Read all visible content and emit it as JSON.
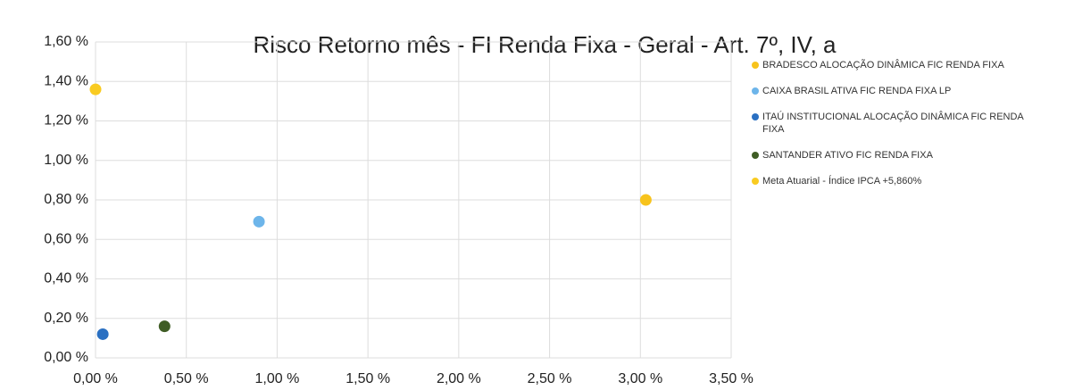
{
  "chart_data": {
    "type": "scatter",
    "title": "Risco Retorno mês - FI Renda Fixa - Geral - Art. 7º, IV, a",
    "series": [
      {
        "name": "BRADESCO ALOCAÇÃO DINÂMICA FIC RENDA FIXA",
        "color": "#f7c31c",
        "x": [
          3.03
        ],
        "values": [
          0.8
        ]
      },
      {
        "name": "CAIXA BRASIL ATIVA FIC RENDA FIXA LP",
        "color": "#6db5ea",
        "x": [
          0.9
        ],
        "values": [
          0.69
        ]
      },
      {
        "name": "ITAÚ INSTITUCIONAL ALOCAÇÃO DINÂMICA FIC RENDA FIXA",
        "color": "#2a70c2",
        "x": [
          0.04
        ],
        "values": [
          0.12
        ]
      },
      {
        "name": "SANTANDER ATIVO FIC RENDA FIXA",
        "color": "#3f5d25",
        "x": [
          0.38
        ],
        "values": [
          0.16
        ]
      },
      {
        "name": "Meta Atuarial - Índice IPCA +5,860%",
        "color": "#f9cb21",
        "x": [
          0
        ],
        "values": [
          1.36
        ]
      }
    ],
    "xlim": [
      0,
      3.5
    ],
    "xticks": [
      {
        "value": 0,
        "label": "0,00 %"
      },
      {
        "value": 0.5,
        "label": "0,50 %"
      },
      {
        "value": 1,
        "label": "1,00 %"
      },
      {
        "value": 1.5,
        "label": "1,50 %"
      },
      {
        "value": 2,
        "label": "2,00 %"
      },
      {
        "value": 2.5,
        "label": "2,50 %"
      },
      {
        "value": 3,
        "label": "3,00 %"
      },
      {
        "value": 3.5,
        "label": "3,50 %"
      }
    ],
    "ylim": [
      0,
      1.6
    ],
    "yticks": [
      {
        "value": 0,
        "label": "0,00 %"
      },
      {
        "value": 0.2,
        "label": "0,20 %"
      },
      {
        "value": 0.4,
        "label": "0,40 %"
      },
      {
        "value": 0.6,
        "label": "0,60 %"
      },
      {
        "value": 0.8,
        "label": "0,80 %"
      },
      {
        "value": 1,
        "label": "1,00 %"
      },
      {
        "value": 1.2,
        "label": "1,20 %"
      },
      {
        "value": 1.4,
        "label": "1,40 %"
      },
      {
        "value": 1.6,
        "label": "1,60 %"
      }
    ],
    "grid": true,
    "legend": "right"
  }
}
